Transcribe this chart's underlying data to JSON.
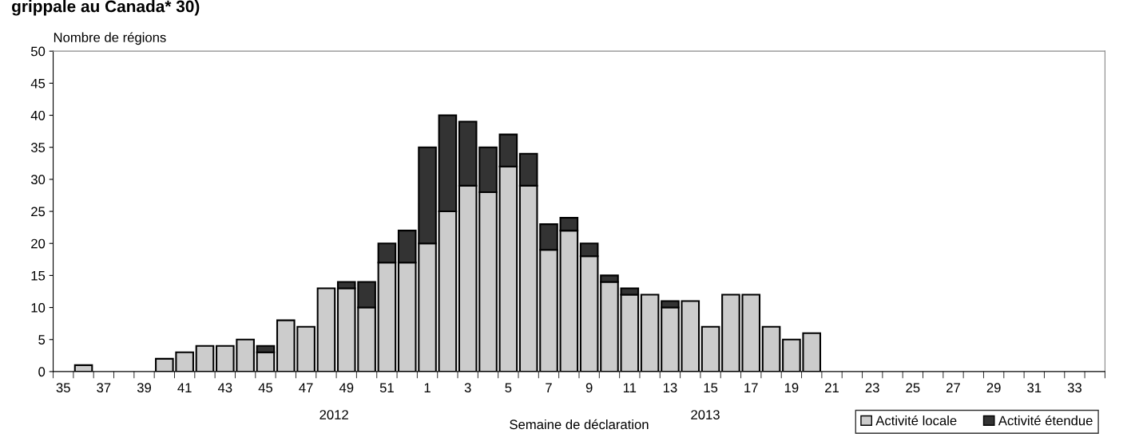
{
  "chart_data": {
    "type": "bar",
    "title": "grippale au Canada* 30)",
    "ylabel": "Nombre de régions",
    "xlabel": "Semaine de déclaration",
    "categories": [
      "35",
      null,
      "37",
      null,
      "39",
      null,
      "41",
      null,
      "43",
      null,
      "45",
      null,
      "47",
      null,
      "49",
      null,
      "51",
      null,
      "1",
      null,
      "3",
      null,
      "5",
      null,
      "7",
      null,
      "9",
      null,
      "11",
      null,
      "13",
      null,
      "15",
      null,
      "17",
      null,
      "19",
      null,
      "21",
      null,
      "23",
      null,
      "25",
      null,
      "27",
      null,
      "29",
      null,
      "31",
      null,
      "33",
      null
    ],
    "series": [
      {
        "name": "Activité locale",
        "color": "#cccccc",
        "values": [
          0,
          1,
          0,
          0,
          0,
          2,
          3,
          4,
          4,
          5,
          3,
          8,
          7,
          13,
          13,
          10,
          17,
          17,
          20,
          25,
          29,
          28,
          32,
          29,
          19,
          22,
          18,
          14,
          12,
          12,
          10,
          11,
          7,
          12,
          12,
          7,
          5,
          6,
          0,
          0,
          0,
          0,
          0,
          0,
          0,
          0,
          0,
          0,
          0,
          0,
          0,
          0
        ]
      },
      {
        "name": "Activité étendue",
        "color": "#333333",
        "values": [
          0,
          0,
          0,
          0,
          0,
          0,
          0,
          0,
          0,
          0,
          1,
          0,
          0,
          0,
          1,
          4,
          3,
          5,
          15,
          15,
          10,
          7,
          5,
          5,
          4,
          2,
          2,
          1,
          1,
          0,
          1,
          0,
          0,
          0,
          0,
          0,
          0,
          0,
          0,
          0,
          0,
          0,
          0,
          0,
          0,
          0,
          0,
          0,
          0,
          0,
          0,
          0
        ]
      }
    ],
    "stacked": true,
    "ylim": [
      0,
      50
    ],
    "yticks": [
      0,
      5,
      10,
      15,
      20,
      25,
      30,
      35,
      40,
      45,
      50
    ],
    "grid": false,
    "legend": "bottom right",
    "annotations": [
      "2012",
      "2013"
    ]
  }
}
